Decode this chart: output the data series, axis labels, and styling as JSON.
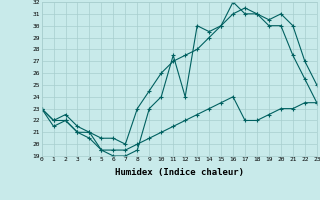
{
  "xlabel": "Humidex (Indice chaleur)",
  "bg_color": "#c8eaea",
  "line_color": "#006060",
  "grid_color": "#a8cece",
  "x": [
    0,
    1,
    2,
    3,
    4,
    5,
    6,
    7,
    8,
    9,
    10,
    11,
    12,
    13,
    14,
    15,
    16,
    17,
    18,
    19,
    20,
    21,
    22,
    23
  ],
  "line1": [
    23,
    22,
    22,
    21,
    21,
    19.5,
    19,
    19,
    19.5,
    23,
    24,
    27.5,
    24,
    30,
    29.5,
    30,
    32,
    31,
    31,
    30.5,
    31,
    30,
    27,
    25
  ],
  "line2": [
    23,
    22,
    22.5,
    21.5,
    21,
    20.5,
    20.5,
    20,
    23,
    24.5,
    26,
    27,
    27.5,
    28,
    29,
    30,
    31,
    31.5,
    31,
    30,
    30,
    27.5,
    25.5,
    23.5
  ],
  "line3": [
    23,
    21.5,
    22,
    21,
    20.5,
    19.5,
    19.5,
    19.5,
    20,
    20.5,
    21,
    21.5,
    22,
    22.5,
    23,
    23.5,
    24,
    22,
    22,
    22.5,
    23,
    23,
    23.5,
    23.5
  ],
  "xlim": [
    0,
    23
  ],
  "ylim": [
    19,
    32
  ],
  "yticks": [
    19,
    20,
    21,
    22,
    23,
    24,
    25,
    26,
    27,
    28,
    29,
    30,
    31,
    32
  ],
  "xticks": [
    0,
    1,
    2,
    3,
    4,
    5,
    6,
    7,
    8,
    9,
    10,
    11,
    12,
    13,
    14,
    15,
    16,
    17,
    18,
    19,
    20,
    21,
    22,
    23
  ]
}
